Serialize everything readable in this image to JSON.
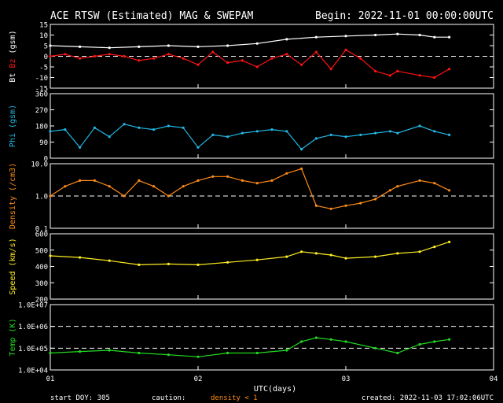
{
  "header": {
    "title": "ACE RTSW (Estimated) MAG & SWEPAM",
    "begin": "Begin: 2022-11-01 00:00:00UTC"
  },
  "footer": {
    "start_doy": "start DOY: 305",
    "caution": "caution:",
    "density_note": "density < 1",
    "created": "created: 2022-11-03 17:02:06UTC"
  },
  "colors": {
    "background": "#000000",
    "axes": "#ffffff",
    "bt": "#ffffff",
    "bz": "#ff1414",
    "phi": "#22b8e6",
    "density": "#ff8c1a",
    "speed": "#ffee22",
    "temp": "#22dd22"
  },
  "chart_data": {
    "type": "line",
    "xlabel": "UTC(days)",
    "x_ticks": [
      "01",
      "02",
      "03",
      "04"
    ],
    "xlim": [
      1,
      4
    ],
    "panels": [
      {
        "key": "mag",
        "ylabel_parts": [
          {
            "text": "Bt",
            "color": "#ffffff"
          },
          {
            "text": "Bz",
            "color": "#ff1414"
          },
          {
            "text": "(gsm)",
            "color": "#ffffff"
          }
        ],
        "scale": "linear",
        "ylim": [
          -15,
          15
        ],
        "y_ticks": [
          "-15",
          "-10",
          "-5",
          "0",
          "5",
          "10",
          "15"
        ],
        "y_tick_values": [
          -15,
          -10,
          -5,
          0,
          5,
          10,
          15
        ],
        "ref_lines": [
          0
        ],
        "series": [
          {
            "name": "Bt",
            "color": "#ffffff",
            "x": [
              1.0,
              1.2,
              1.4,
              1.6,
              1.8,
              2.0,
              2.2,
              2.4,
              2.6,
              2.8,
              3.0,
              3.2,
              3.35,
              3.5,
              3.6,
              3.7
            ],
            "y": [
              5,
              4.5,
              4,
              4.5,
              5,
              4.5,
              5,
              6,
              8,
              9,
              9.5,
              10,
              10.5,
              10,
              9,
              9
            ]
          },
          {
            "name": "Bz",
            "color": "#ff1414",
            "x": [
              1.0,
              1.1,
              1.2,
              1.3,
              1.4,
              1.5,
              1.6,
              1.7,
              1.8,
              1.9,
              2.0,
              2.1,
              2.2,
              2.3,
              2.4,
              2.5,
              2.6,
              2.7,
              2.8,
              2.9,
              3.0,
              3.1,
              3.2,
              3.3,
              3.35,
              3.5,
              3.6,
              3.7
            ],
            "y": [
              0,
              1,
              -1,
              0,
              1,
              0,
              -2,
              -1,
              1,
              -1,
              -4,
              2,
              -3,
              -2,
              -5,
              -1,
              1,
              -4,
              2,
              -6,
              3,
              -1,
              -7,
              -9,
              -7,
              -9,
              -10,
              -6
            ]
          }
        ]
      },
      {
        "key": "phi",
        "ylabel_parts": [
          {
            "text": "Phi (gsm)",
            "color": "#22b8e6"
          }
        ],
        "scale": "linear",
        "ylim": [
          0,
          360
        ],
        "y_ticks": [
          "0",
          "90",
          "180",
          "270",
          "360"
        ],
        "y_tick_values": [
          0,
          90,
          180,
          270,
          360
        ],
        "ref_lines": [],
        "series": [
          {
            "name": "Phi",
            "color": "#22b8e6",
            "x": [
              1.0,
              1.1,
              1.2,
              1.3,
              1.4,
              1.5,
              1.6,
              1.7,
              1.8,
              1.9,
              2.0,
              2.1,
              2.2,
              2.3,
              2.4,
              2.5,
              2.6,
              2.7,
              2.8,
              2.9,
              3.0,
              3.1,
              3.2,
              3.3,
              3.35,
              3.5,
              3.6,
              3.7
            ],
            "y": [
              150,
              160,
              60,
              170,
              120,
              190,
              170,
              160,
              180,
              170,
              60,
              130,
              120,
              140,
              150,
              160,
              150,
              50,
              110,
              130,
              120,
              130,
              140,
              150,
              140,
              180,
              150,
              130
            ]
          }
        ]
      },
      {
        "key": "density",
        "ylabel_parts": [
          {
            "text": "Density (/cm3)",
            "color": "#ff8c1a"
          }
        ],
        "scale": "log",
        "ylim": [
          0.1,
          10
        ],
        "y_ticks": [
          "0.1",
          "1.0",
          "10.0"
        ],
        "y_tick_values": [
          0.1,
          1,
          10
        ],
        "ref_lines": [
          1
        ],
        "series": [
          {
            "name": "Density",
            "color": "#ff8c1a",
            "x": [
              1.0,
              1.1,
              1.2,
              1.3,
              1.4,
              1.5,
              1.6,
              1.7,
              1.8,
              1.9,
              2.0,
              2.1,
              2.2,
              2.3,
              2.4,
              2.5,
              2.6,
              2.7,
              2.8,
              2.9,
              3.0,
              3.1,
              3.2,
              3.3,
              3.35,
              3.5,
              3.6,
              3.7
            ],
            "y": [
              1,
              2,
              3,
              3,
              2,
              1,
              3,
              2,
              1,
              2,
              3,
              4,
              4,
              3,
              2.5,
              3,
              5,
              7,
              0.5,
              0.4,
              0.5,
              0.6,
              0.8,
              1.5,
              2,
              3,
              2.5,
              1.5
            ]
          }
        ]
      },
      {
        "key": "speed",
        "ylabel_parts": [
          {
            "text": "Speed (km/s)",
            "color": "#ffee22"
          }
        ],
        "scale": "linear",
        "ylim": [
          200,
          600
        ],
        "y_ticks": [
          "200",
          "300",
          "400",
          "500",
          "600"
        ],
        "y_tick_values": [
          200,
          300,
          400,
          500,
          600
        ],
        "ref_lines": [],
        "series": [
          {
            "name": "Speed",
            "color": "#ffee22",
            "x": [
              1.0,
              1.2,
              1.4,
              1.6,
              1.8,
              2.0,
              2.2,
              2.4,
              2.6,
              2.7,
              2.8,
              2.9,
              3.0,
              3.2,
              3.35,
              3.5,
              3.6,
              3.7
            ],
            "y": [
              465,
              455,
              435,
              410,
              415,
              410,
              425,
              440,
              460,
              490,
              480,
              470,
              450,
              460,
              480,
              490,
              520,
              550
            ]
          }
        ]
      },
      {
        "key": "temp",
        "ylabel_parts": [
          {
            "text": "Temp (K)",
            "color": "#22dd22"
          }
        ],
        "scale": "log",
        "ylim": [
          10000,
          10000000
        ],
        "y_ticks": [
          "1.0E+04",
          "1.0E+05",
          "1.0E+06",
          "1.0E+07"
        ],
        "y_tick_values": [
          10000,
          100000,
          1000000,
          10000000
        ],
        "ref_lines": [
          100000,
          1000000
        ],
        "series": [
          {
            "name": "Temp",
            "color": "#22dd22",
            "x": [
              1.0,
              1.2,
              1.4,
              1.6,
              1.8,
              2.0,
              2.2,
              2.4,
              2.6,
              2.7,
              2.8,
              2.9,
              3.0,
              3.2,
              3.35,
              3.5,
              3.6,
              3.7
            ],
            "y": [
              60000,
              70000,
              80000,
              60000,
              50000,
              40000,
              60000,
              60000,
              80000,
              200000,
              300000,
              250000,
              200000,
              100000,
              60000,
              150000,
              200000,
              250000
            ]
          }
        ]
      }
    ]
  }
}
